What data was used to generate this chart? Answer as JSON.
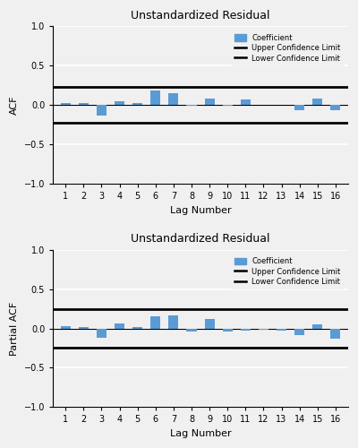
{
  "title": "Unstandardized Residual",
  "lags": [
    1,
    2,
    3,
    4,
    5,
    6,
    7,
    8,
    9,
    10,
    11,
    12,
    13,
    14,
    15,
    16
  ],
  "acf_values": [
    0.03,
    0.02,
    -0.13,
    0.05,
    0.02,
    0.18,
    0.15,
    -0.01,
    0.08,
    -0.01,
    0.07,
    0.0,
    0.0,
    -0.07,
    0.08,
    -0.07
  ],
  "pacf_values": [
    0.03,
    0.02,
    -0.12,
    0.06,
    0.02,
    0.15,
    0.17,
    -0.04,
    0.12,
    -0.04,
    -0.03,
    -0.02,
    -0.03,
    -0.09,
    0.05,
    -0.13
  ],
  "upper_conf_acf": 0.23,
  "lower_conf_acf": -0.23,
  "upper_conf_pacf": 0.24,
  "lower_conf_pacf": -0.24,
  "bar_color": "#5B9BD5",
  "conf_line_color": "#000000",
  "ylim": [
    -1.0,
    1.0
  ],
  "yticks": [
    -1.0,
    -0.5,
    0.0,
    0.5,
    1.0
  ],
  "acf_ylabel": "ACF",
  "pacf_ylabel": "Partial ACF",
  "xlabel": "Lag Number",
  "legend_coeff": "Coefficient",
  "legend_upper": "Upper Confidence Limit",
  "legend_lower": "Lower Confidence Limit",
  "bg_color": "#F0F0F0",
  "grid_color": "#FFFFFF",
  "bar_width": 0.55
}
